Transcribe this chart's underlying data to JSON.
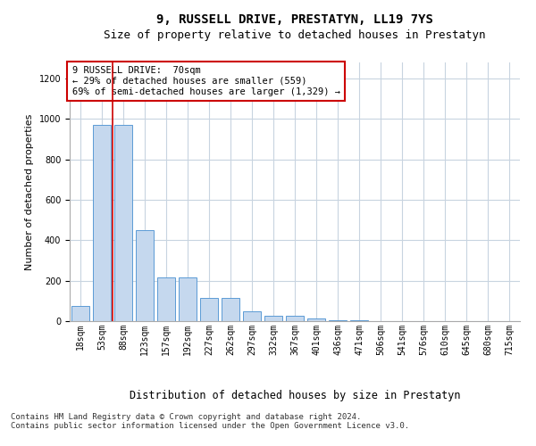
{
  "title": "9, RUSSELL DRIVE, PRESTATYN, LL19 7YS",
  "subtitle": "Size of property relative to detached houses in Prestatyn",
  "xlabel": "Distribution of detached houses by size in Prestatyn",
  "ylabel": "Number of detached properties",
  "bin_labels": [
    "18sqm",
    "53sqm",
    "88sqm",
    "123sqm",
    "157sqm",
    "192sqm",
    "227sqm",
    "262sqm",
    "297sqm",
    "332sqm",
    "367sqm",
    "401sqm",
    "436sqm",
    "471sqm",
    "506sqm",
    "541sqm",
    "576sqm",
    "610sqm",
    "645sqm",
    "680sqm",
    "715sqm"
  ],
  "bar_values": [
    75,
    970,
    970,
    450,
    215,
    215,
    115,
    115,
    50,
    25,
    25,
    15,
    5,
    5,
    2,
    2,
    2,
    1,
    1,
    1,
    0
  ],
  "bar_color": "#c5d8ee",
  "bar_edge_color": "#5b9bd5",
  "property_line_color": "#cc0000",
  "annotation_text": "9 RUSSELL DRIVE:  70sqm\n← 29% of detached houses are smaller (559)\n69% of semi-detached houses are larger (1,329) →",
  "annotation_box_color": "#ffffff",
  "annotation_box_edge": "#cc0000",
  "ylim": [
    0,
    1280
  ],
  "yticks": [
    0,
    200,
    400,
    600,
    800,
    1000,
    1200
  ],
  "footer_text": "Contains HM Land Registry data © Crown copyright and database right 2024.\nContains public sector information licensed under the Open Government Licence v3.0.",
  "bg_color": "#ffffff",
  "grid_color": "#c8d4e0",
  "title_fontsize": 10,
  "subtitle_fontsize": 9,
  "ylabel_fontsize": 8,
  "xlabel_fontsize": 8.5,
  "tick_fontsize": 7,
  "annotation_fontsize": 7.5,
  "footer_fontsize": 6.5
}
